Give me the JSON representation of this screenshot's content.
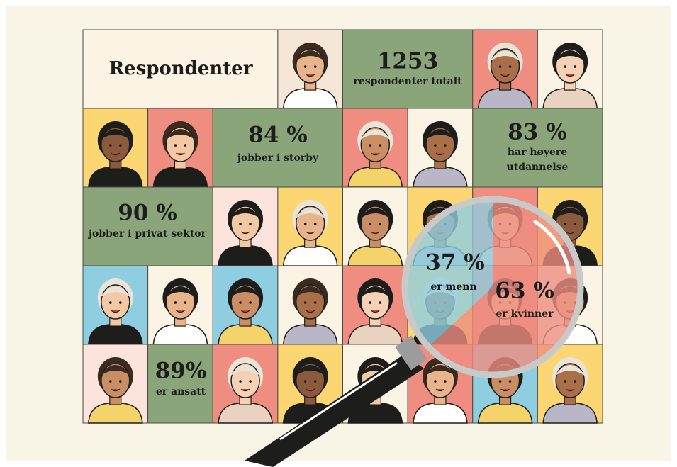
{
  "title": "Respondenter",
  "total": {
    "number": "1253",
    "label": "respondenter totalt"
  },
  "stats": [
    {
      "number": "84 %",
      "label": "jobber i storby"
    },
    {
      "number": "83 %",
      "label": "har høyere",
      "label2": "utdannelse"
    },
    {
      "number": "90 %",
      "label": "jobber i privat sektor"
    },
    {
      "number": "89%",
      "label": "er ansatt"
    }
  ],
  "gender": [
    {
      "value": 37,
      "value_label": "37 %",
      "label": "er menn",
      "color": "#8fcde0"
    },
    {
      "value": 63,
      "value_label": "63 %",
      "label": "er kvinner",
      "color": "#ee8d80"
    }
  ]
}
